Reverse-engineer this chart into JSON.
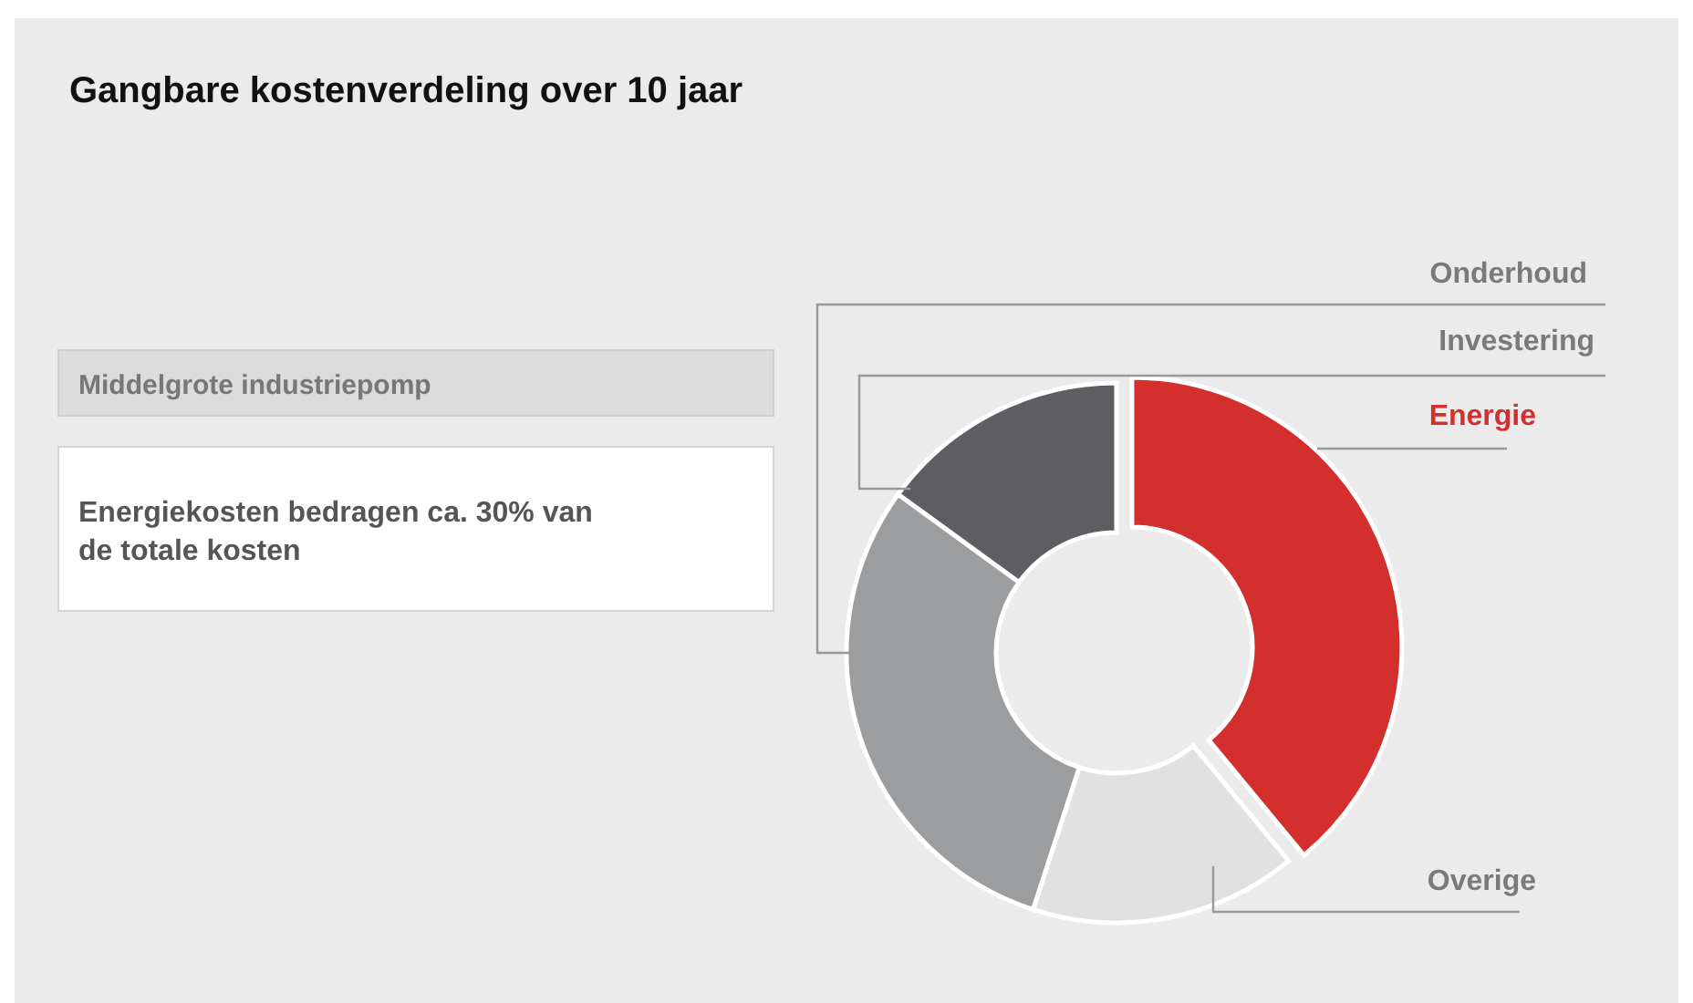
{
  "chart_data": {
    "type": "donut",
    "title": "Gangbare kostenverdeling over 10 jaar",
    "categories": [
      "Energie",
      "Overige",
      "Onderhoud",
      "Investering"
    ],
    "values": [
      39,
      16,
      30,
      15
    ],
    "colors": [
      "#d3302d",
      "#e1e1e1",
      "#9c9d9f",
      "#5e5e62"
    ],
    "annotations": [
      "Middelgrote industriepomp",
      "Energiekosten bedragen ca. 30% van de totale kosten"
    ]
  }
}
